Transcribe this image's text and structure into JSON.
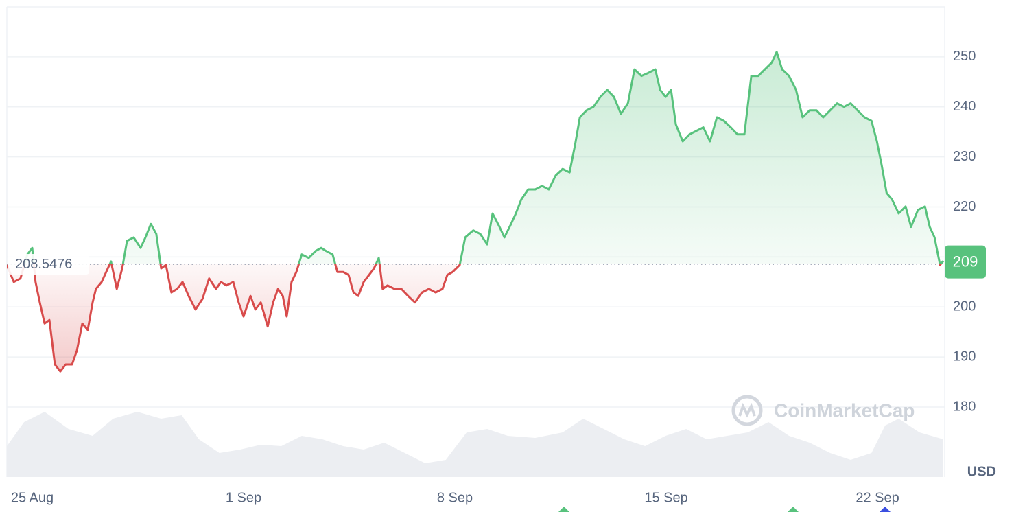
{
  "chart_data": {
    "type": "line",
    "x": [
      -0.84,
      -0.61,
      -0.39,
      -0.16,
      0,
      0.11,
      0.25,
      0.41,
      0.57,
      0.75,
      0.93,
      1.11,
      1.32,
      1.48,
      1.66,
      1.84,
      2.0,
      2.11,
      2.3,
      2.45,
      2.61,
      2.8,
      2.98,
      3.14,
      3.36,
      3.59,
      3.75,
      3.93,
      4.11,
      4.27,
      4.43,
      4.61,
      4.8,
      4.98,
      5.18,
      5.41,
      5.64,
      5.86,
      6.09,
      6.25,
      6.43,
      6.66,
      6.84,
      7.0,
      7.23,
      7.39,
      7.57,
      7.8,
      7.98,
      8.14,
      8.3,
      8.43,
      8.59,
      8.75,
      8.93,
      9.16,
      9.39,
      9.57,
      9.73,
      9.95,
      10.11,
      10.3,
      10.48,
      10.64,
      10.8,
      10.98,
      11.16,
      11.32,
      11.48,
      11.61,
      11.77,
      12.0,
      12.23,
      12.45,
      12.68,
      12.91,
      13.14,
      13.36,
      13.59,
      13.75,
      13.93,
      14.16,
      14.34,
      14.61,
      14.84,
      15.07,
      15.25,
      15.48,
      15.64,
      15.86,
      16.02,
      16.2,
      16.43,
      16.66,
      16.89,
      17.11,
      17.34,
      17.57,
      17.8,
      17.98,
      18.14,
      18.36,
      18.59,
      18.82,
      19.05,
      19.27,
      19.5,
      19.73,
      19.95,
      20.18,
      20.41,
      20.64,
      20.8,
      20.98,
      21.16,
      21.32,
      21.55,
      21.77,
      22.0,
      22.23,
      22.45,
      22.68,
      22.91,
      23.14,
      23.36,
      23.59,
      23.82,
      24.05,
      24.27,
      24.5,
      24.66,
      24.84,
      25.07,
      25.3,
      25.52,
      25.75,
      25.98,
      26.2,
      26.43,
      26.66,
      26.89,
      27.11,
      27.34,
      27.57,
      27.8,
      27.98,
      28.14,
      28.3,
      28.48,
      28.7,
      28.93,
      29.11,
      29.34,
      29.57,
      29.73,
      29.89,
      30.07,
      30.18
    ],
    "series": [
      {
        "name": "price",
        "up_color": "#58c27d",
        "down_color": "#d84b4b",
        "values": [
          208.4,
          205.0,
          205.7,
          210.5,
          211.8,
          205.0,
          200.9,
          196.7,
          197.4,
          188.5,
          187.1,
          188.5,
          188.5,
          191.3,
          196.7,
          195.4,
          200.9,
          203.6,
          205.0,
          207.0,
          209.1,
          203.6,
          207.7,
          213.2,
          213.9,
          211.8,
          213.9,
          216.6,
          214.6,
          207.7,
          208.4,
          202.9,
          203.6,
          205.0,
          202.2,
          199.5,
          201.6,
          205.7,
          203.6,
          205.0,
          204.3,
          205.0,
          200.9,
          198.1,
          202.2,
          199.5,
          200.9,
          196.1,
          200.9,
          203.6,
          202.2,
          198.1,
          205.0,
          207.0,
          210.5,
          209.8,
          211.2,
          211.8,
          211.2,
          210.5,
          207.0,
          207.0,
          206.4,
          202.9,
          202.2,
          205.0,
          206.4,
          207.7,
          209.8,
          203.6,
          204.3,
          203.6,
          203.6,
          202.2,
          200.9,
          202.9,
          203.6,
          202.9,
          203.6,
          206.4,
          207.0,
          208.4,
          213.9,
          215.3,
          214.6,
          212.5,
          218.7,
          216.0,
          213.9,
          216.6,
          218.7,
          221.5,
          223.5,
          223.5,
          224.2,
          223.5,
          226.3,
          227.6,
          226.9,
          232.4,
          237.9,
          239.3,
          240.0,
          242.0,
          243.4,
          242.0,
          238.6,
          240.7,
          247.5,
          246.2,
          246.8,
          247.5,
          243.4,
          242.0,
          243.4,
          236.5,
          233.1,
          234.5,
          235.2,
          235.9,
          233.1,
          237.9,
          237.2,
          235.9,
          234.5,
          234.5,
          246.2,
          246.2,
          247.5,
          248.9,
          251.0,
          247.5,
          246.2,
          243.4,
          237.9,
          239.3,
          239.3,
          237.9,
          239.3,
          240.7,
          240.0,
          240.7,
          239.3,
          237.9,
          237.2,
          233.1,
          228.3,
          222.8,
          221.5,
          218.7,
          220.1,
          216.0,
          219.4,
          220.1,
          216.0,
          213.9,
          208.4,
          209.2
        ]
      }
    ],
    "baseline": 208.5476,
    "current_price": 209,
    "volume": {
      "color": "#eceef2",
      "ylim": [
        0,
        100
      ],
      "x": [
        -0.84,
        -0.27,
        0.41,
        1.2,
        2.0,
        2.68,
        3.48,
        4.27,
        4.95,
        5.52,
        6.2,
        6.89,
        7.57,
        8.25,
        8.93,
        9.61,
        10.3,
        10.98,
        11.66,
        12.34,
        13.02,
        13.7,
        14.39,
        15.07,
        15.75,
        16.66,
        17.57,
        18.25,
        18.93,
        19.61,
        20.3,
        20.98,
        21.66,
        22.34,
        23.02,
        23.7,
        24.39,
        25.07,
        25.75,
        26.43,
        27.11,
        27.8,
        28.25,
        28.7,
        29.39,
        30.18
      ],
      "values": [
        45,
        80,
        95,
        70,
        60,
        85,
        95,
        85,
        90,
        55,
        35,
        40,
        47,
        45,
        60,
        55,
        45,
        40,
        50,
        35,
        20,
        25,
        65,
        70,
        60,
        57,
        65,
        85,
        70,
        55,
        45,
        60,
        70,
        55,
        60,
        65,
        80,
        60,
        50,
        35,
        25,
        35,
        75,
        85,
        65,
        55
      ]
    },
    "xlim": [
      -0.84,
      30.18
    ],
    "xticks": [
      {
        "value": 0,
        "label": "25 Aug"
      },
      {
        "value": 7,
        "label": "1 Sep"
      },
      {
        "value": 14,
        "label": "8 Sep"
      },
      {
        "value": 21,
        "label": "15 Sep"
      },
      {
        "value": 28,
        "label": "22 Sep"
      }
    ],
    "ylim": [
      166,
      260
    ],
    "yticks": [
      180,
      190,
      200,
      210,
      220,
      230,
      240,
      250
    ],
    "y_unit": "USD",
    "watermark": "CoinMarketCap",
    "grid": true
  }
}
